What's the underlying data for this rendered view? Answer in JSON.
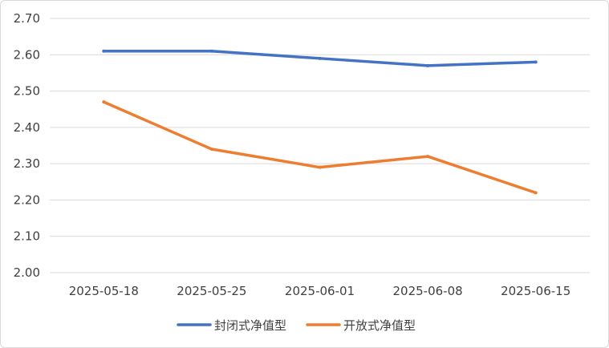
{
  "chart_data": {
    "type": "line",
    "title": "",
    "xlabel": "",
    "ylabel": "",
    "categories": [
      "2025-05-18",
      "2025-05-25",
      "2025-06-01",
      "2025-06-08",
      "2025-06-15"
    ],
    "series": [
      {
        "name": "封闭式净值型",
        "color": "#4472C4",
        "values": [
          2.61,
          2.61,
          2.59,
          2.57,
          2.58
        ]
      },
      {
        "name": "开放式净值型",
        "color": "#ED7D31",
        "values": [
          2.47,
          2.34,
          2.29,
          2.32,
          2.22
        ]
      }
    ],
    "ylim": [
      2.0,
      2.7
    ],
    "yticks": [
      "2.00",
      "2.10",
      "2.20",
      "2.30",
      "2.40",
      "2.50",
      "2.60",
      "2.70"
    ],
    "grid": true,
    "gridline_color": "#d9d9d9",
    "legend_position": "bottom"
  }
}
